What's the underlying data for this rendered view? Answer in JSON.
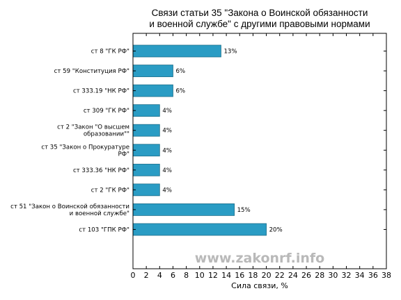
{
  "chart_data": {
    "type": "bar",
    "orientation": "horizontal",
    "title": "Связи статьи 35 \"Закона о Воинской обязанности и военной службе\" с другими правовыми нормами",
    "title_lines": [
      "Связи статьи 35 \"Закона о Воинской обязанности",
      "и военной службе\" с другими правовыми нормами"
    ],
    "xlabel": "Сила связи, %",
    "ylabel": "",
    "xlim": [
      0,
      38
    ],
    "xticks": [
      "0",
      "2",
      "4",
      "6",
      "8",
      "10",
      "12",
      "14",
      "16",
      "18",
      "20",
      "22",
      "24",
      "26",
      "28",
      "30",
      "32",
      "34",
      "36",
      "38"
    ],
    "grid": false,
    "categories": [
      [
        "ст 8 \"ГК РФ\""
      ],
      [
        "ст 59 \"Конституция РФ\""
      ],
      [
        "ст 333.19 \"НК РФ\""
      ],
      [
        "ст 309 \"ГК РФ\""
      ],
      [
        "ст 2 \"Закон \"О высшем",
        "образовании\"\""
      ],
      [
        "ст 35 \"Закон о Прокуратуре",
        "РФ\""
      ],
      [
        "ст 333.36 \"НК РФ\""
      ],
      [
        "ст 2 \"ГК РФ\""
      ],
      [
        "ст 51 \"Закон о Воинской обязанности",
        "и военной службе\""
      ],
      [
        "ст 103 \"ГПК РФ\""
      ]
    ],
    "values": [
      13.2,
      6.0,
      6.0,
      4.0,
      4.0,
      4.0,
      4.0,
      4.0,
      15.2,
      20.0
    ],
    "value_labels": [
      "13%",
      "6%",
      "6%",
      "4%",
      "4%",
      "4%",
      "4%",
      "4%",
      "15%",
      "20%"
    ],
    "bar_color": "#2a9cc4"
  },
  "watermark": "www.zakonrf.info"
}
